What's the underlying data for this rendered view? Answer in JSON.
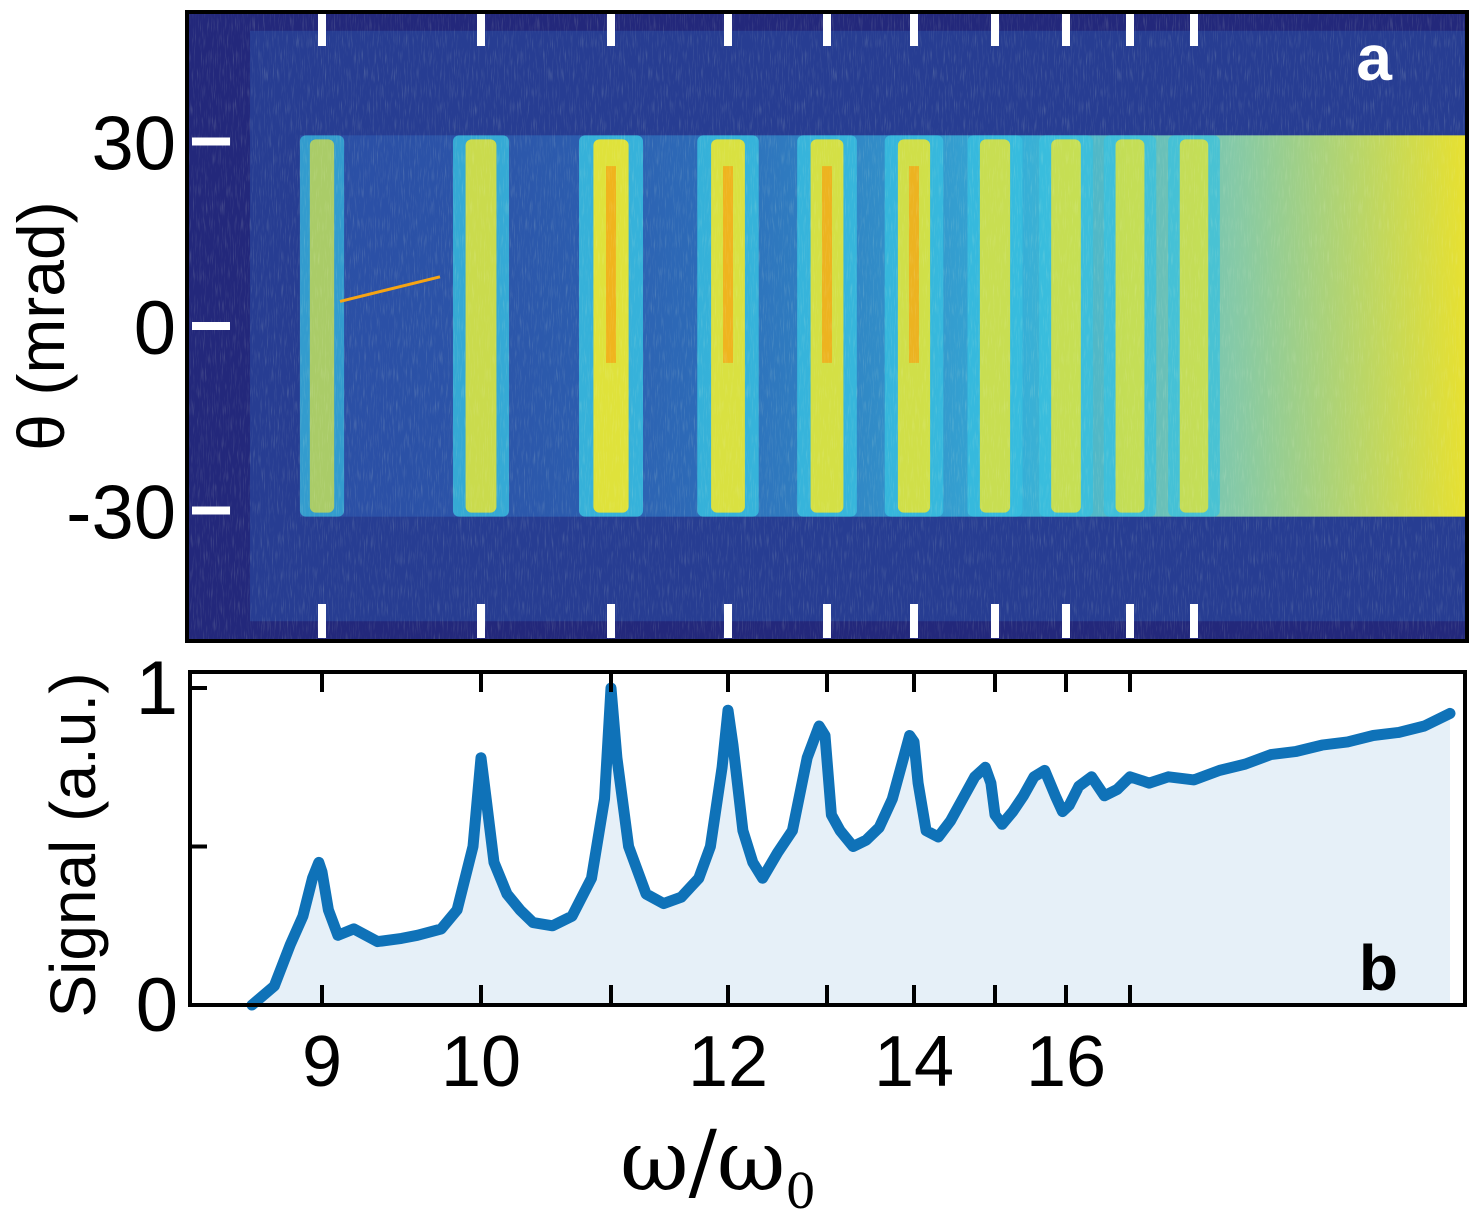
{
  "chart_data": [
    {
      "panel": "a",
      "type": "heatmap",
      "panel_label": "a",
      "ylabel": "θ (mrad)",
      "yticks": [
        30,
        0,
        -30
      ],
      "ytick_labels": [
        "30",
        "0",
        "-30"
      ],
      "ylim": [
        -51,
        51
      ],
      "xlim": [
        8.2,
        22
      ],
      "harmonic_marker_orders": [
        9,
        10,
        11,
        12,
        13,
        14,
        15,
        16,
        17,
        18
      ],
      "harmonic_bands": [
        {
          "order": 9,
          "peak": 0.45
        },
        {
          "order": 10,
          "peak": 0.78
        },
        {
          "order": 11,
          "peak": 1.0
        },
        {
          "order": 12,
          "peak": 0.93
        },
        {
          "order": 13,
          "peak": 0.88
        },
        {
          "order": 14,
          "peak": 0.85
        },
        {
          "order": 15,
          "peak": 0.75
        },
        {
          "order": 16,
          "peak": 0.72
        },
        {
          "order": 17,
          "peak": 0.68
        },
        {
          "order": 18,
          "peak": 0.66
        }
      ],
      "beam_divergence_mrad": [
        -31,
        31
      ],
      "colormap": [
        "#23287b",
        "#2b4fa5",
        "#2f80c6",
        "#38c0e0",
        "#8fd7a8",
        "#f2e829",
        "#f6a414",
        "#e02a1a"
      ]
    },
    {
      "panel": "b",
      "type": "area",
      "panel_label": "b",
      "ylabel": "Signal (a.u.)",
      "xlabel": "ω/ω",
      "xlabel_subscript": "0",
      "yticks": [
        0,
        0.5,
        1
      ],
      "ytick_labels": [
        "0",
        "",
        "1"
      ],
      "ylim": [
        0,
        1
      ],
      "xlim": [
        8.2,
        22
      ],
      "xticks": [
        9,
        10,
        11,
        12,
        13,
        14,
        15,
        16,
        17
      ],
      "xtick_labels": [
        "9",
        "10",
        "",
        "12",
        "",
        "14",
        "",
        "16",
        ""
      ],
      "series": [
        {
          "name": "Signal",
          "x": [
            8.56,
            8.7,
            8.8,
            8.88,
            8.94,
            8.98,
            9.0,
            9.04,
            9.1,
            9.2,
            9.35,
            9.5,
            9.6,
            9.75,
            9.85,
            9.95,
            10.0,
            10.04,
            10.1,
            10.2,
            10.3,
            10.4,
            10.55,
            10.7,
            10.85,
            10.95,
            11.0,
            11.05,
            11.15,
            11.3,
            11.45,
            11.6,
            11.75,
            11.85,
            11.95,
            12.0,
            12.05,
            12.15,
            12.25,
            12.35,
            12.5,
            12.65,
            12.8,
            12.92,
            12.98,
            13.05,
            13.15,
            13.3,
            13.45,
            13.6,
            13.75,
            13.88,
            13.95,
            14.0,
            14.05,
            14.15,
            14.3,
            14.45,
            14.6,
            14.75,
            14.88,
            14.95,
            15.0,
            15.1,
            15.25,
            15.4,
            15.55,
            15.7,
            15.85,
            15.95,
            16.05,
            16.2,
            16.4,
            16.6,
            16.8,
            17.0,
            17.3,
            17.6,
            18.0,
            18.4,
            18.8,
            19.2,
            19.6,
            20.0,
            20.4,
            20.8,
            21.2,
            21.6,
            22.0
          ],
          "values": [
            0.0,
            0.06,
            0.19,
            0.28,
            0.4,
            0.45,
            0.42,
            0.3,
            0.22,
            0.24,
            0.2,
            0.21,
            0.22,
            0.24,
            0.3,
            0.5,
            0.78,
            0.65,
            0.45,
            0.35,
            0.3,
            0.26,
            0.25,
            0.28,
            0.4,
            0.65,
            1.0,
            0.78,
            0.5,
            0.35,
            0.32,
            0.34,
            0.4,
            0.5,
            0.75,
            0.93,
            0.82,
            0.55,
            0.45,
            0.4,
            0.48,
            0.55,
            0.78,
            0.88,
            0.85,
            0.6,
            0.55,
            0.5,
            0.52,
            0.56,
            0.65,
            0.78,
            0.85,
            0.83,
            0.7,
            0.55,
            0.53,
            0.58,
            0.65,
            0.72,
            0.75,
            0.7,
            0.6,
            0.57,
            0.61,
            0.66,
            0.72,
            0.74,
            0.66,
            0.61,
            0.63,
            0.69,
            0.72,
            0.66,
            0.68,
            0.72,
            0.7,
            0.72,
            0.71,
            0.74,
            0.76,
            0.79,
            0.8,
            0.82,
            0.83,
            0.85,
            0.86,
            0.88,
            0.92
          ],
          "color": "#0f72b8",
          "fill": "#e6f0f8"
        }
      ]
    }
  ]
}
